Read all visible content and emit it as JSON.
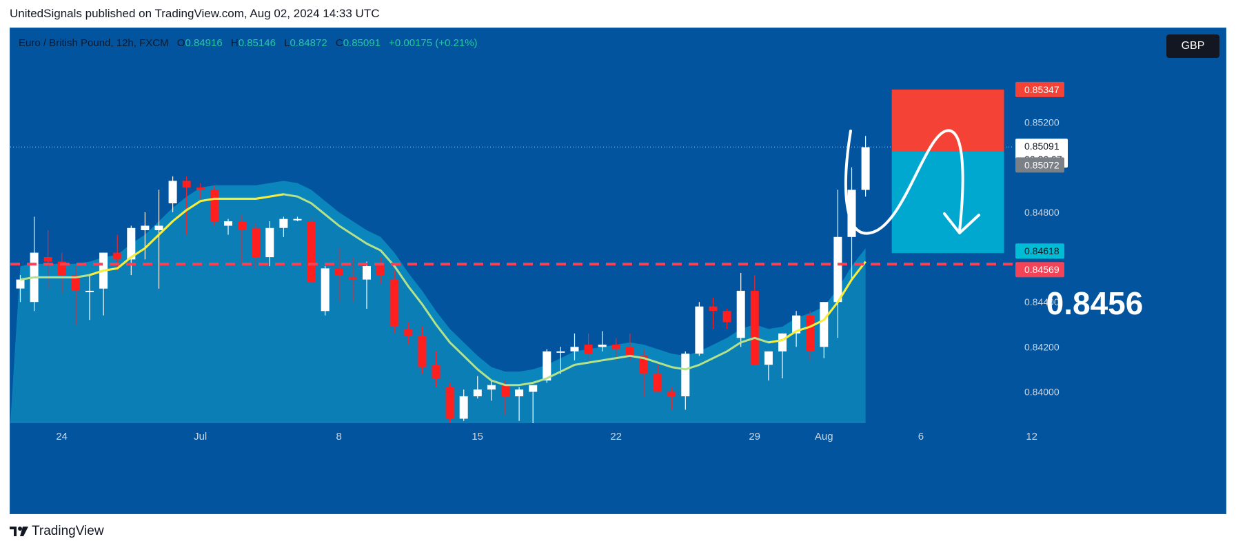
{
  "header": {
    "publisher_line": "UnitedSignals published on TradingView.com, Aug 02, 2024 14:33 UTC"
  },
  "legend": {
    "symbol": "Euro / British Pound, 12h, FXCM",
    "open_label": "O",
    "open": "0.84916",
    "high_label": "H",
    "high": "0.85146",
    "low_label": "L",
    "low": "0.84872",
    "close_label": "C",
    "close": "0.85091",
    "change": "+0.00175 (+0.21%)"
  },
  "currency_button": "GBP",
  "annotation_text": "0.8456",
  "footer": {
    "brand": "TradingView",
    "logo_icon": "tradingview-logo-icon"
  },
  "colors": {
    "background": "#02549e",
    "up": "#ffffff",
    "down": "#ff1f1f",
    "ma": "#f7ec3a",
    "stop": "#f44336",
    "target": "#00a8cf",
    "level": "#f44356"
  },
  "chart_data": {
    "type": "candlestick",
    "timeframe": "12h",
    "symbol": "EUR/GBP",
    "ylim": [
      0.8386,
      0.8562
    ],
    "y_ticks": [
      0.84,
      0.842,
      0.844,
      0.848,
      0.852
    ],
    "y_tick_labels": [
      "0.84000",
      "0.84200",
      "0.84400",
      "0.84800",
      "0.85200"
    ],
    "x_ticks": [
      {
        "label": "24",
        "index": 2
      },
      {
        "label": "Jul",
        "index": 12
      },
      {
        "label": "8",
        "index": 22
      },
      {
        "label": "15",
        "index": 32
      },
      {
        "label": "22",
        "index": 42
      },
      {
        "label": "29",
        "index": 52
      },
      {
        "label": "Aug",
        "index": 57
      },
      {
        "label": "6",
        "index": 64
      },
      {
        "label": "12",
        "index": 72
      }
    ],
    "price_labels": [
      {
        "value": 0.85347,
        "text": "0.85347",
        "kind": "stop"
      },
      {
        "value": 0.85091,
        "text": "0.85091",
        "kind": "last",
        "countdown": "06:26:07"
      },
      {
        "value": 0.85072,
        "text": "0.85072",
        "kind": "entry"
      },
      {
        "value": 0.84618,
        "text": "0.84618",
        "kind": "target"
      },
      {
        "value": 0.84569,
        "text": "0.84569",
        "kind": "level"
      }
    ],
    "candles": [
      [
        0.8446,
        0.8452,
        0.844,
        0.845
      ],
      [
        0.844,
        0.8478,
        0.8436,
        0.8462
      ],
      [
        0.846,
        0.8472,
        0.8446,
        0.8458
      ],
      [
        0.8458,
        0.8462,
        0.8444,
        0.8452
      ],
      [
        0.8452,
        0.8456,
        0.843,
        0.8445
      ],
      [
        0.8445,
        0.8452,
        0.8432,
        0.8445
      ],
      [
        0.8446,
        0.8462,
        0.8434,
        0.8462
      ],
      [
        0.8462,
        0.847,
        0.8454,
        0.8459
      ],
      [
        0.8459,
        0.8474,
        0.8452,
        0.8473
      ],
      [
        0.8472,
        0.848,
        0.8459,
        0.8474
      ],
      [
        0.8472,
        0.849,
        0.8446,
        0.8474
      ],
      [
        0.8484,
        0.8496,
        0.848,
        0.8494
      ],
      [
        0.8494,
        0.8496,
        0.847,
        0.8491
      ],
      [
        0.8491,
        0.8493,
        0.8486,
        0.849
      ],
      [
        0.849,
        0.8492,
        0.8474,
        0.8476
      ],
      [
        0.8474,
        0.8477,
        0.847,
        0.8476
      ],
      [
        0.8476,
        0.8479,
        0.8457,
        0.8472
      ],
      [
        0.8473,
        0.8475,
        0.8455,
        0.846
      ],
      [
        0.846,
        0.8476,
        0.8456,
        0.8473
      ],
      [
        0.8473,
        0.8478,
        0.8469,
        0.8477
      ],
      [
        0.8477,
        0.8478,
        0.8476,
        0.8477
      ],
      [
        0.8476,
        0.8478,
        0.8448,
        0.8449
      ],
      [
        0.8436,
        0.8456,
        0.8434,
        0.8455
      ],
      [
        0.8455,
        0.8464,
        0.844,
        0.8452
      ],
      [
        0.8451,
        0.846,
        0.844,
        0.845
      ],
      [
        0.845,
        0.8458,
        0.8437,
        0.8456
      ],
      [
        0.8456,
        0.846,
        0.8448,
        0.8452
      ],
      [
        0.845,
        0.8454,
        0.8426,
        0.8429
      ],
      [
        0.8428,
        0.8431,
        0.8421,
        0.8425
      ],
      [
        0.8425,
        0.8429,
        0.8408,
        0.8411
      ],
      [
        0.8412,
        0.8418,
        0.8402,
        0.8406
      ],
      [
        0.8402,
        0.8404,
        0.8386,
        0.8388
      ],
      [
        0.8388,
        0.8401,
        0.8387,
        0.8398
      ],
      [
        0.8398,
        0.8407,
        0.8397,
        0.8401
      ],
      [
        0.8401,
        0.8405,
        0.8396,
        0.8403
      ],
      [
        0.8403,
        0.8405,
        0.839,
        0.8398
      ],
      [
        0.8398,
        0.8402,
        0.8387,
        0.8401
      ],
      [
        0.84,
        0.8403,
        0.8386,
        0.8403
      ],
      [
        0.8405,
        0.8419,
        0.8404,
        0.8418
      ],
      [
        0.8418,
        0.842,
        0.8408,
        0.8418
      ],
      [
        0.8418,
        0.8426,
        0.8414,
        0.842
      ],
      [
        0.8421,
        0.8426,
        0.8413,
        0.8417
      ],
      [
        0.842,
        0.8427,
        0.8418,
        0.8421
      ],
      [
        0.8421,
        0.8424,
        0.8414,
        0.8419
      ],
      [
        0.842,
        0.8426,
        0.8414,
        0.8416
      ],
      [
        0.8416,
        0.8419,
        0.8398,
        0.8408
      ],
      [
        0.8408,
        0.8412,
        0.84,
        0.84
      ],
      [
        0.84,
        0.8402,
        0.8392,
        0.8398
      ],
      [
        0.8398,
        0.8418,
        0.8392,
        0.8417
      ],
      [
        0.8417,
        0.844,
        0.8416,
        0.8438
      ],
      [
        0.8438,
        0.8442,
        0.8428,
        0.8436
      ],
      [
        0.8436,
        0.8437,
        0.8428,
        0.8431
      ],
      [
        0.8424,
        0.8453,
        0.842,
        0.8445
      ],
      [
        0.8445,
        0.8452,
        0.8412,
        0.8412
      ],
      [
        0.8412,
        0.8418,
        0.8405,
        0.8418
      ],
      [
        0.8418,
        0.8426,
        0.8406,
        0.8426
      ],
      [
        0.8426,
        0.8436,
        0.842,
        0.8434
      ],
      [
        0.8434,
        0.8436,
        0.8414,
        0.8418
      ],
      [
        0.842,
        0.844,
        0.8415,
        0.844
      ],
      [
        0.844,
        0.849,
        0.8424,
        0.8469
      ],
      [
        0.8469,
        0.85,
        0.845,
        0.849
      ],
      [
        0.849,
        0.8514,
        0.8487,
        0.8509
      ]
    ],
    "moving_average": [
      0.845,
      0.8451,
      0.8451,
      0.8451,
      0.8451,
      0.8452,
      0.8454,
      0.8455,
      0.846,
      0.8464,
      0.847,
      0.8476,
      0.8481,
      0.8485,
      0.8486,
      0.8486,
      0.8486,
      0.8486,
      0.8487,
      0.8488,
      0.8487,
      0.8484,
      0.8479,
      0.8474,
      0.847,
      0.8466,
      0.8463,
      0.8456,
      0.8447,
      0.8439,
      0.843,
      0.8422,
      0.8416,
      0.841,
      0.8405,
      0.8403,
      0.8403,
      0.8404,
      0.8406,
      0.8409,
      0.8412,
      0.8413,
      0.8414,
      0.8415,
      0.8416,
      0.8415,
      0.8413,
      0.8411,
      0.841,
      0.8412,
      0.8415,
      0.8418,
      0.8422,
      0.8424,
      0.8422,
      0.8423,
      0.8427,
      0.8429,
      0.8432,
      0.844,
      0.845,
      0.8458
    ],
    "band_top": [
      0.8456,
      0.8457,
      0.8457,
      0.8457,
      0.8457,
      0.8458,
      0.846,
      0.8461,
      0.8466,
      0.847,
      0.8476,
      0.8482,
      0.8487,
      0.8491,
      0.8492,
      0.8492,
      0.8492,
      0.8492,
      0.8493,
      0.8494,
      0.8493,
      0.849,
      0.8485,
      0.848,
      0.8476,
      0.8472,
      0.8469,
      0.8462,
      0.8453,
      0.8445,
      0.8436,
      0.8428,
      0.8422,
      0.8416,
      0.8411,
      0.8409,
      0.8409,
      0.841,
      0.8412,
      0.8415,
      0.8418,
      0.8419,
      0.842,
      0.8421,
      0.8422,
      0.8421,
      0.8419,
      0.8417,
      0.8416,
      0.8418,
      0.8421,
      0.8424,
      0.8428,
      0.843,
      0.8428,
      0.8429,
      0.8433,
      0.8435,
      0.8438,
      0.8446,
      0.8456,
      0.8464
    ],
    "position": {
      "start_index": 62,
      "end_index": 70,
      "stop": 0.85347,
      "entry": 0.85072,
      "target": 0.84618
    },
    "horizontal_level": 0.84569
  }
}
